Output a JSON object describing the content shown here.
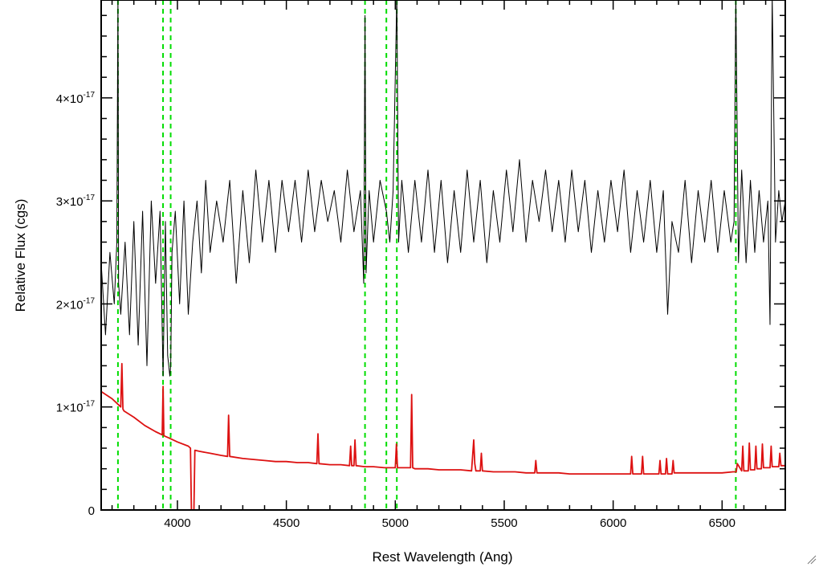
{
  "chart_data": {
    "type": "line",
    "title": "",
    "xlabel": "Rest Wavelength (Ang)",
    "ylabel": "Relative Flux (cgs)",
    "xlim": [
      3650,
      6790
    ],
    "ylim": [
      0,
      4.95e-17
    ],
    "x_ticks": [
      {
        "value": 4000,
        "label": "4000"
      },
      {
        "value": 4500,
        "label": "4500"
      },
      {
        "value": 5000,
        "label": "5000"
      },
      {
        "value": 5500,
        "label": "5500"
      },
      {
        "value": 6000,
        "label": "6000"
      },
      {
        "value": 6500,
        "label": "6500"
      }
    ],
    "y_ticks": [
      {
        "value": 0,
        "mantissa": "0",
        "exponent": ""
      },
      {
        "value": 1e-17,
        "mantissa": "1×10",
        "exponent": "-17"
      },
      {
        "value": 2e-17,
        "mantissa": "2×10",
        "exponent": "-17"
      },
      {
        "value": 3e-17,
        "mantissa": "3×10",
        "exponent": "-17"
      },
      {
        "value": 4e-17,
        "mantissa": "4×10",
        "exponent": "-17"
      }
    ],
    "reference_lines": {
      "color": "#00dd00",
      "style": "dashed",
      "x": [
        3727,
        3934,
        3969,
        4861,
        4959,
        5007,
        6563
      ]
    },
    "series": [
      {
        "color": "#000000",
        "x": [
          3650,
          3670,
          3690,
          3710,
          3722,
          3727,
          3730,
          3740,
          3760,
          3780,
          3800,
          3820,
          3840,
          3860,
          3880,
          3900,
          3920,
          3934,
          3945,
          3955,
          3965,
          3969,
          3975,
          3990,
          4010,
          4030,
          4050,
          4070,
          4090,
          4110,
          4130,
          4150,
          4180,
          4210,
          4240,
          4270,
          4300,
          4330,
          4360,
          4390,
          4420,
          4450,
          4480,
          4510,
          4540,
          4570,
          4600,
          4630,
          4660,
          4690,
          4720,
          4750,
          4780,
          4810,
          4840,
          4855,
          4861,
          4866,
          4880,
          4900,
          4930,
          4959,
          4975,
          4990,
          5007,
          5015,
          5030,
          5060,
          5090,
          5120,
          5150,
          5180,
          5210,
          5240,
          5270,
          5300,
          5330,
          5360,
          5390,
          5420,
          5450,
          5480,
          5510,
          5540,
          5570,
          5600,
          5630,
          5660,
          5690,
          5720,
          5750,
          5780,
          5810,
          5840,
          5870,
          5900,
          5930,
          5960,
          5990,
          6020,
          6050,
          6080,
          6110,
          6140,
          6170,
          6200,
          6230,
          6250,
          6270,
          6300,
          6330,
          6360,
          6390,
          6420,
          6450,
          6480,
          6510,
          6540,
          6555,
          6563,
          6575,
          6590,
          6610,
          6630,
          6650,
          6670,
          6690,
          6710,
          6720,
          6730,
          6745,
          6760,
          6775,
          6790
        ],
        "y": [
          2.4e-17,
          1.7e-17,
          2.5e-17,
          2e-17,
          2.6e-17,
          5e-17,
          2.2e-17,
          1.9e-17,
          2.6e-17,
          1.7e-17,
          2.8e-17,
          1.6e-17,
          2.9e-17,
          1.4e-17,
          3e-17,
          2.2e-17,
          2.9e-17,
          1.3e-17,
          2.8e-17,
          1.5e-17,
          1.3e-17,
          1.4e-17,
          2.5e-17,
          2.9e-17,
          2e-17,
          3e-17,
          1.9e-17,
          2.6e-17,
          3e-17,
          2.3e-17,
          3.2e-17,
          2.5e-17,
          3e-17,
          2.6e-17,
          3.2e-17,
          2.2e-17,
          3.1e-17,
          2.4e-17,
          3.3e-17,
          2.6e-17,
          3.2e-17,
          2.5e-17,
          3.2e-17,
          2.7e-17,
          3.2e-17,
          2.6e-17,
          3.3e-17,
          2.7e-17,
          3.2e-17,
          2.8e-17,
          3.1e-17,
          2.6e-17,
          3.3e-17,
          2.7e-17,
          3.1e-17,
          2.2e-17,
          4.8e-17,
          2.3e-17,
          3.1e-17,
          2.6e-17,
          3.2e-17,
          2.9e-17,
          2.6e-17,
          3.1e-17,
          5e-17,
          2.6e-17,
          3.2e-17,
          2.5e-17,
          3.2e-17,
          2.6e-17,
          3.3e-17,
          2.5e-17,
          3.2e-17,
          2.4e-17,
          3.1e-17,
          2.5e-17,
          3.3e-17,
          2.6e-17,
          3.2e-17,
          2.4e-17,
          3.1e-17,
          2.6e-17,
          3.3e-17,
          2.7e-17,
          3.4e-17,
          2.6e-17,
          3.2e-17,
          2.8e-17,
          3.3e-17,
          2.7e-17,
          3.2e-17,
          2.6e-17,
          3.3e-17,
          2.7e-17,
          3.2e-17,
          2.5e-17,
          3.1e-17,
          2.6e-17,
          3.2e-17,
          2.7e-17,
          3.3e-17,
          2.5e-17,
          3.1e-17,
          2.6e-17,
          3.2e-17,
          2.5e-17,
          3.1e-17,
          1.9e-17,
          2.8e-17,
          2.5e-17,
          3.2e-17,
          2.4e-17,
          3.1e-17,
          2.6e-17,
          3.2e-17,
          2.5e-17,
          3.1e-17,
          2.6e-17,
          2.8e-17,
          5e-17,
          2.4e-17,
          3.3e-17,
          2.4e-17,
          3.2e-17,
          2.5e-17,
          3.1e-17,
          2.6e-17,
          3e-17,
          1.8e-17,
          5e-17,
          2.6e-17,
          3.1e-17,
          2.8e-17,
          3e-17
        ]
      },
      {
        "color": "#dd1111",
        "x": [
          3650,
          3700,
          3740,
          3745,
          3750,
          3755,
          3800,
          3850,
          3900,
          3930,
          3934,
          3938,
          3960,
          4000,
          4050,
          4060,
          4065,
          4075,
          4080,
          4100,
          4150,
          4200,
          4230,
          4235,
          4240,
          4300,
          4350,
          4400,
          4450,
          4500,
          4550,
          4600,
          4640,
          4645,
          4650,
          4700,
          4750,
          4790,
          4795,
          4800,
          4810,
          4815,
          4820,
          4860,
          4900,
          4950,
          4990,
          5000,
          5005,
          5010,
          5060,
          5070,
          5075,
          5080,
          5090,
          5150,
          5200,
          5250,
          5300,
          5350,
          5360,
          5365,
          5370,
          5390,
          5395,
          5400,
          5450,
          5500,
          5550,
          5600,
          5640,
          5645,
          5650,
          5700,
          5750,
          5800,
          5850,
          5900,
          5950,
          6000,
          6050,
          6060,
          6070,
          6080,
          6085,
          6090,
          6100,
          6130,
          6135,
          6140,
          6150,
          6200,
          6210,
          6215,
          6220,
          6240,
          6245,
          6250,
          6270,
          6275,
          6280,
          6300,
          6350,
          6400,
          6450,
          6500,
          6550,
          6565,
          6570,
          6590,
          6595,
          6600,
          6620,
          6625,
          6630,
          6650,
          6655,
          6660,
          6680,
          6685,
          6690,
          6720,
          6725,
          6730,
          6760,
          6765,
          6770,
          6790
        ],
        "y": [
          1.15e-17,
          1.08e-17,
          1e-17,
          1.42e-17,
          9.8e-18,
          9.6e-18,
          9e-18,
          8.2e-18,
          7.6e-18,
          7.3e-18,
          1.2e-17,
          7.2e-18,
          7e-18,
          6.6e-18,
          6.2e-18,
          6e-18,
          -1e-18,
          -1e-18,
          5.8e-18,
          5.7e-18,
          5.5e-18,
          5.3e-18,
          5.2e-18,
          9.2e-18,
          5.2e-18,
          5e-18,
          4.9e-18,
          4.8e-18,
          4.7e-18,
          4.7e-18,
          4.6e-18,
          4.6e-18,
          4.5e-18,
          7.4e-18,
          4.5e-18,
          4.4e-18,
          4.4e-18,
          4.3e-18,
          6.2e-18,
          4.3e-18,
          4.3e-18,
          6.8e-18,
          4.3e-18,
          4.2e-18,
          4.2e-18,
          4.1e-18,
          4.1e-18,
          4.1e-18,
          6.4e-18,
          4.1e-18,
          4.1e-18,
          4.1e-18,
          1.12e-17,
          4.1e-18,
          4e-18,
          4e-18,
          3.9e-18,
          3.9e-18,
          3.9e-18,
          3.8e-18,
          6.8e-18,
          4.5e-18,
          3.8e-18,
          3.8e-18,
          5.5e-18,
          3.8e-18,
          3.7e-18,
          3.7e-18,
          3.7e-18,
          3.6e-18,
          3.6e-18,
          4.8e-18,
          3.6e-18,
          3.6e-18,
          3.6e-18,
          3.5e-18,
          3.5e-18,
          3.5e-18,
          3.5e-18,
          3.5e-18,
          3.5e-18,
          3.5e-18,
          3.5e-18,
          3.5e-18,
          5.2e-18,
          3.5e-18,
          3.5e-18,
          3.5e-18,
          5.2e-18,
          3.5e-18,
          3.5e-18,
          3.5e-18,
          3.5e-18,
          4.8e-18,
          3.5e-18,
          3.5e-18,
          5e-18,
          3.5e-18,
          3.5e-18,
          4.8e-18,
          3.6e-18,
          3.6e-18,
          3.6e-18,
          3.6e-18,
          3.6e-18,
          3.6e-18,
          3.7e-18,
          3.7e-18,
          4.5e-18,
          3.8e-18,
          6.2e-18,
          3.8e-18,
          3.8e-18,
          6.5e-18,
          3.9e-18,
          3.9e-18,
          6.2e-18,
          4e-18,
          4e-18,
          6.4e-18,
          4.1e-18,
          4.1e-18,
          6.2e-18,
          4.2e-18,
          4.2e-18,
          5.5e-18,
          4.3e-18,
          4.3e-18
        ]
      }
    ]
  }
}
